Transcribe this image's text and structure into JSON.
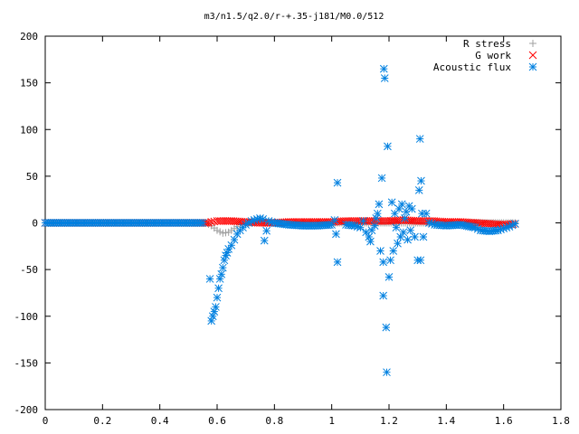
{
  "chart_data": {
    "type": "scatter",
    "title": "m3/n1.5/q2.0/r-+.35-j181/M0.0/512",
    "xlabel": "",
    "ylabel": "",
    "xlim": [
      0,
      1.8
    ],
    "ylim": [
      -200,
      200
    ],
    "x_ticks": [
      "0",
      "0.2",
      "0.4",
      "0.6",
      "0.8",
      "1",
      "1.2",
      "1.4",
      "1.6",
      "1.8"
    ],
    "y_ticks": [
      "200",
      "150",
      "100",
      "50",
      "0",
      "-50",
      "-100",
      "-150",
      "-200"
    ],
    "grid": false,
    "legend_position": "top-right",
    "series": [
      {
        "name": "R stress",
        "marker": "plus",
        "color": "#a0a0a0",
        "points": [
          [
            0,
            0
          ],
          [
            0.1,
            0
          ],
          [
            0.2,
            0
          ],
          [
            0.3,
            0
          ],
          [
            0.4,
            0
          ],
          [
            0.5,
            0
          ],
          [
            0.56,
            0
          ],
          [
            0.58,
            -3
          ],
          [
            0.6,
            -8
          ],
          [
            0.62,
            -11
          ],
          [
            0.64,
            -10
          ],
          [
            0.66,
            -6
          ],
          [
            0.68,
            -2
          ],
          [
            0.7,
            0
          ],
          [
            0.75,
            1
          ],
          [
            0.8,
            0
          ],
          [
            0.9,
            0
          ],
          [
            1.0,
            0
          ],
          [
            1.1,
            0
          ],
          [
            1.2,
            0
          ],
          [
            1.3,
            0
          ],
          [
            1.4,
            0
          ],
          [
            1.5,
            0
          ],
          [
            1.6,
            0
          ],
          [
            1.64,
            0
          ]
        ]
      },
      {
        "name": "G work",
        "marker": "cross",
        "color": "#ff0000",
        "points": [
          [
            0,
            0
          ],
          [
            0.1,
            0
          ],
          [
            0.2,
            0
          ],
          [
            0.3,
            0
          ],
          [
            0.4,
            0
          ],
          [
            0.5,
            0
          ],
          [
            0.57,
            0
          ],
          [
            0.58,
            1
          ],
          [
            0.6,
            2
          ],
          [
            0.65,
            2
          ],
          [
            0.7,
            1
          ],
          [
            0.75,
            0
          ],
          [
            0.8,
            0
          ],
          [
            0.85,
            1
          ],
          [
            0.9,
            1
          ],
          [
            0.95,
            1
          ],
          [
            1.0,
            1
          ],
          [
            1.05,
            2
          ],
          [
            1.1,
            2
          ],
          [
            1.15,
            2
          ],
          [
            1.2,
            2
          ],
          [
            1.25,
            3
          ],
          [
            1.3,
            2
          ],
          [
            1.35,
            2
          ],
          [
            1.4,
            1
          ],
          [
            1.45,
            1
          ],
          [
            1.5,
            0
          ],
          [
            1.55,
            -1
          ],
          [
            1.6,
            -2
          ],
          [
            1.64,
            -1
          ]
        ]
      },
      {
        "name": "Acoustic flux",
        "marker": "star",
        "color": "#0080e0",
        "points": [
          [
            0,
            0
          ],
          [
            0.05,
            0
          ],
          [
            0.1,
            0
          ],
          [
            0.15,
            0
          ],
          [
            0.2,
            0
          ],
          [
            0.25,
            0
          ],
          [
            0.3,
            0
          ],
          [
            0.35,
            0
          ],
          [
            0.4,
            0
          ],
          [
            0.45,
            0
          ],
          [
            0.5,
            0
          ],
          [
            0.55,
            0
          ],
          [
            0.575,
            -60
          ],
          [
            0.58,
            -105
          ],
          [
            0.585,
            -100
          ],
          [
            0.59,
            -95
          ],
          [
            0.595,
            -90
          ],
          [
            0.6,
            -80
          ],
          [
            0.605,
            -70
          ],
          [
            0.61,
            -60
          ],
          [
            0.615,
            -55
          ],
          [
            0.62,
            -48
          ],
          [
            0.625,
            -40
          ],
          [
            0.63,
            -35
          ],
          [
            0.635,
            -32
          ],
          [
            0.64,
            -28
          ],
          [
            0.65,
            -24
          ],
          [
            0.66,
            -18
          ],
          [
            0.67,
            -12
          ],
          [
            0.68,
            -8
          ],
          [
            0.69,
            -5
          ],
          [
            0.7,
            -2
          ],
          [
            0.71,
            0
          ],
          [
            0.72,
            2
          ],
          [
            0.73,
            3
          ],
          [
            0.74,
            4
          ],
          [
            0.75,
            5
          ],
          [
            0.76,
            4
          ],
          [
            0.765,
            -19
          ],
          [
            0.78,
            2
          ],
          [
            0.8,
            0
          ],
          [
            0.85,
            -2
          ],
          [
            0.9,
            -3
          ],
          [
            0.95,
            -3
          ],
          [
            1.0,
            -2
          ],
          [
            1.01,
            3
          ],
          [
            1.015,
            -12
          ],
          [
            1.02,
            43
          ],
          [
            1.02,
            -42
          ],
          [
            1.05,
            -2
          ],
          [
            1.08,
            -3
          ],
          [
            1.1,
            -5
          ],
          [
            1.11,
            2
          ],
          [
            1.12,
            -10
          ],
          [
            1.13,
            -15
          ],
          [
            1.135,
            -20
          ],
          [
            1.14,
            -8
          ],
          [
            1.15,
            -3
          ],
          [
            1.155,
            5
          ],
          [
            1.16,
            10
          ],
          [
            1.165,
            20
          ],
          [
            1.17,
            -30
          ],
          [
            1.175,
            48
          ],
          [
            1.18,
            -78
          ],
          [
            1.18,
            -42
          ],
          [
            1.182,
            165
          ],
          [
            1.185,
            155
          ],
          [
            1.19,
            -112
          ],
          [
            1.192,
            -160
          ],
          [
            1.195,
            82
          ],
          [
            1.2,
            -58
          ],
          [
            1.205,
            -40
          ],
          [
            1.21,
            22
          ],
          [
            1.215,
            -30
          ],
          [
            1.22,
            10
          ],
          [
            1.225,
            -5
          ],
          [
            1.23,
            -22
          ],
          [
            1.235,
            15
          ],
          [
            1.24,
            -15
          ],
          [
            1.245,
            20
          ],
          [
            1.25,
            -10
          ],
          [
            1.255,
            5
          ],
          [
            1.26,
            12
          ],
          [
            1.265,
            -18
          ],
          [
            1.27,
            18
          ],
          [
            1.275,
            -8
          ],
          [
            1.28,
            15
          ],
          [
            1.29,
            -15
          ],
          [
            1.3,
            -40
          ],
          [
            1.305,
            35
          ],
          [
            1.308,
            90
          ],
          [
            1.31,
            -40
          ],
          [
            1.312,
            45
          ],
          [
            1.315,
            10
          ],
          [
            1.32,
            -15
          ],
          [
            1.33,
            10
          ],
          [
            1.34,
            0
          ],
          [
            1.36,
            -2
          ],
          [
            1.4,
            -3
          ],
          [
            1.45,
            -2
          ],
          [
            1.5,
            -5
          ],
          [
            1.52,
            -8
          ],
          [
            1.55,
            -9
          ],
          [
            1.58,
            -8
          ],
          [
            1.6,
            -6
          ],
          [
            1.62,
            -4
          ],
          [
            1.64,
            -1
          ]
        ]
      }
    ]
  }
}
